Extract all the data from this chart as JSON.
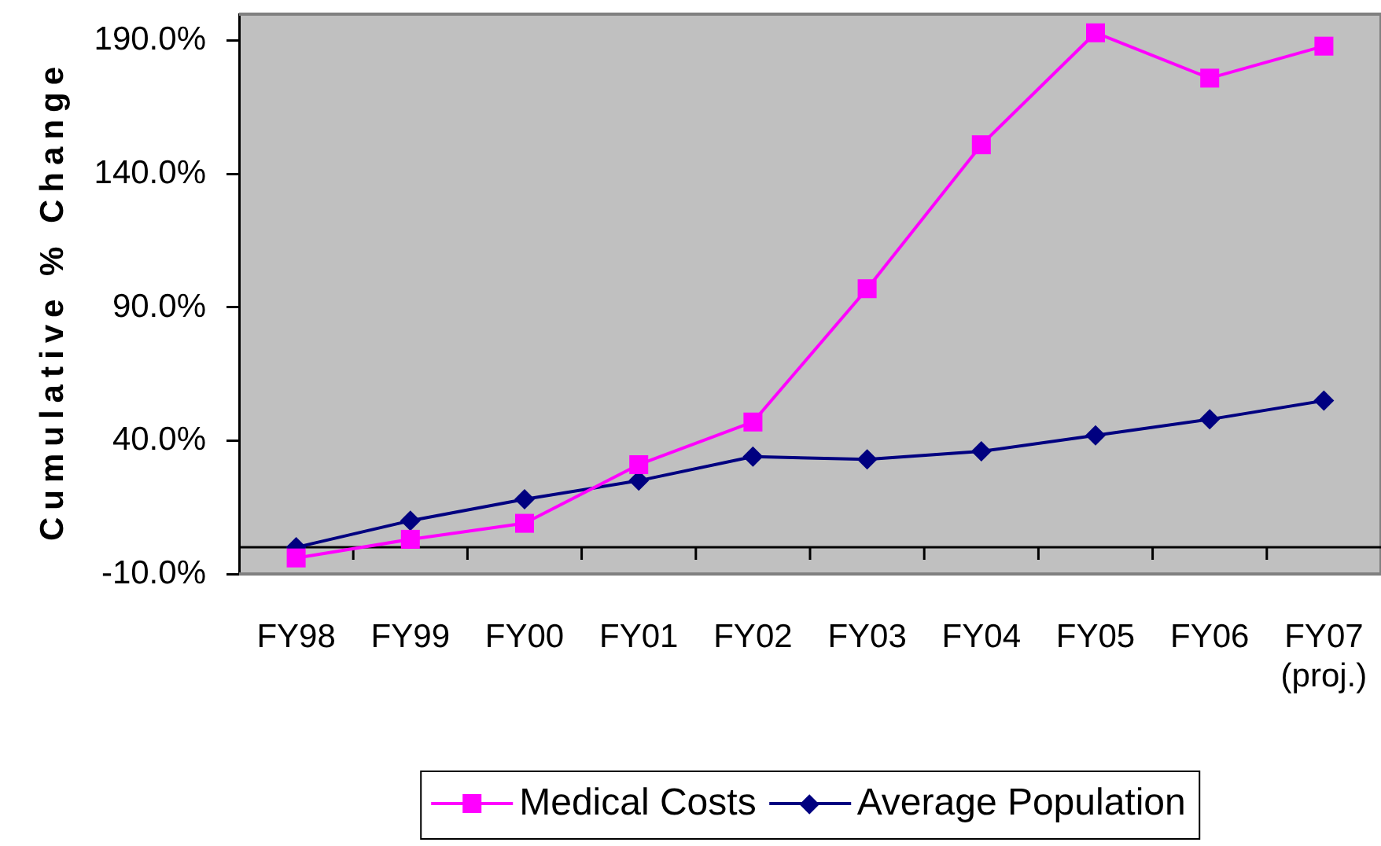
{
  "chart_data": {
    "type": "line",
    "ylabel": "Cumulative % Change",
    "categories": [
      "FY98",
      "FY99",
      "FY00",
      "FY01",
      "FY02",
      "FY03",
      "FY04",
      "FY05",
      "FY06",
      "FY07 (proj.)"
    ],
    "series": [
      {
        "name": "Medical Costs",
        "color": "#ff00ff",
        "marker": "square",
        "values": [
          -4,
          3,
          9,
          31,
          47,
          97,
          151,
          193,
          176,
          188
        ]
      },
      {
        "name": "Average Population",
        "color": "#000080",
        "marker": "diamond",
        "values": [
          0,
          10,
          18,
          25,
          34,
          33,
          36,
          42,
          48,
          55
        ]
      }
    ],
    "ylim": [
      -10,
      200
    ],
    "yticks": [
      {
        "value": -10,
        "label": "-10.0%"
      },
      {
        "value": 40,
        "label": "40.0%"
      },
      {
        "value": 90,
        "label": "90.0%"
      },
      {
        "value": 140,
        "label": "140.0%"
      },
      {
        "value": 190,
        "label": "190.0%"
      }
    ],
    "grid": false,
    "legend": "bottom",
    "ref_lines": [
      {
        "axis": "y",
        "value": 0,
        "color": "#000000"
      }
    ]
  }
}
